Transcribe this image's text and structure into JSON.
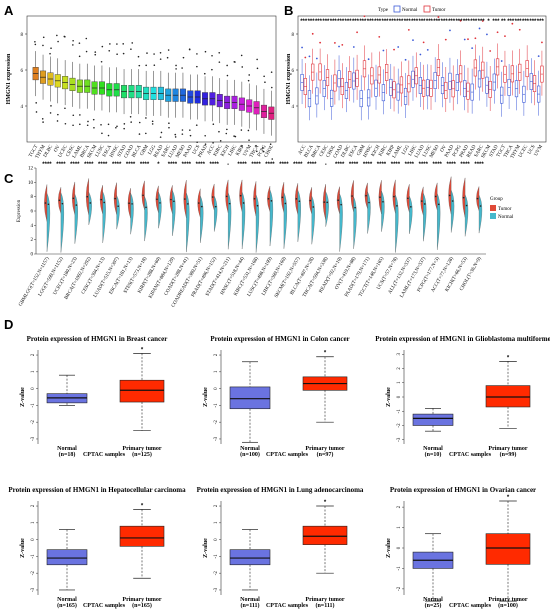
{
  "panel_letters": [
    "A",
    "B",
    "C",
    "D"
  ],
  "chart_data": [
    {
      "type": "box",
      "panel": "A",
      "ylabel": "HMGN1 expression",
      "ylim": [
        2,
        9
      ],
      "yticks": [
        4,
        6,
        8
      ],
      "categories": [
        "TGCT",
        "THYM",
        "DLBC",
        "OV",
        "UCEC",
        "CESC",
        "LAML",
        "BRCA",
        "SKCM",
        "LUSC",
        "ESCA",
        "HNSC",
        "STAD",
        "COAD",
        "BLCA",
        "GBM",
        "LGG",
        "READ",
        "SARC",
        "LUAD",
        "MESO",
        "PAAD",
        "UCS",
        "PRAD",
        "ACC",
        "KIRC",
        "KICH",
        "LIHC",
        "KIRP",
        "UVM",
        "THCA",
        "PCPG",
        "CHOL"
      ],
      "medians": [
        5.8,
        5.6,
        5.5,
        5.4,
        5.3,
        5.2,
        5.1,
        5.1,
        5.0,
        5.0,
        4.9,
        4.9,
        4.8,
        4.8,
        4.8,
        4.7,
        4.7,
        4.7,
        4.6,
        4.6,
        4.6,
        4.5,
        4.5,
        4.4,
        4.4,
        4.3,
        4.2,
        4.2,
        4.1,
        4.0,
        3.9,
        3.7,
        3.6
      ]
    },
    {
      "type": "box",
      "panel": "B",
      "ylabel": "HMGN1 expression",
      "legend_title": "Type",
      "legend": [
        "Normal",
        "Tumor"
      ],
      "yticks": [
        4,
        6,
        8
      ],
      "categories": [
        "ACC",
        "BLCA",
        "BRCA",
        "CESC",
        "CHOL",
        "COAD",
        "DLBC",
        "ESCA",
        "GBM",
        "HNSC",
        "KICH",
        "KIRC",
        "KIRP",
        "LAML",
        "LGG",
        "LIHC",
        "LUAD",
        "LUSC",
        "MESO",
        "OV",
        "PAAD",
        "PCPG",
        "PRAD",
        "READ",
        "SARC",
        "SKCM",
        "STAD",
        "TGCT",
        "THCA",
        "THYM",
        "UCEC",
        "UCS",
        "UVM"
      ],
      "significance": [
        "***",
        "***",
        "***",
        "***",
        "***",
        "***",
        "***",
        "***",
        "***",
        "***",
        "***",
        "***",
        "***",
        "***",
        "***",
        "***",
        "***",
        "***",
        "***",
        "***",
        "***",
        "***",
        "***",
        "***",
        "***",
        "*",
        "***",
        "**",
        "***",
        "***",
        "***",
        "***",
        "***"
      ]
    },
    {
      "type": "violin",
      "panel": "C",
      "ylabel": "Expression",
      "legend_title": "Group",
      "legend": [
        "Tumor",
        "Normal"
      ],
      "yticks": [
        0,
        2,
        4,
        6,
        8,
        10,
        12
      ],
      "categories": [
        "GBMLGG(T=152,N=1157)",
        "LGG(T=509,N=1152)",
        "UCEC(T=180,N=23)",
        "BRCA(T=1092,N=292)",
        "CESC(T=304,N=13)",
        "LUAD(T=515,N=397)",
        "ESCA(T=181,N=13)",
        "STES(T=573,N=18)",
        "KIRP(T=288,N=60)",
        "KIPAN(T=884,N=129)",
        "COAD(T=288,N=41)",
        "COADREAD(T=380,N=51)",
        "PRAD(T=496,N=152)",
        "STAD(T=414,N=211)",
        "HNSC(T=518,N=44)",
        "KIRC(T=531,N=168)",
        "LUSC(T=498,N=109)",
        "LIHC(T=369,N=160)",
        "SKCM(T=102,N=557)",
        "BLCA(T=407,N=28)",
        "THCA(T=504,N=338)",
        "READ(T=92,N=10)",
        "OV(T=419,N=88)",
        "PAAD(T=179,N=171)",
        "TGCT(T=148,N=165)",
        "UCS(T=57,N=78)",
        "ALL(T=132,N=337)",
        "LAML(T=173,N=337)",
        "PCPG(T=177,N=3)",
        "ACC(T=77,N=128)",
        "KICH(T=66,N=53)",
        "CHOL(T=36,N=9)"
      ],
      "significance": [
        "****",
        "****",
        "****",
        "****",
        "****",
        "****",
        "****",
        "****",
        "*",
        "****",
        "****",
        "****",
        "****",
        "-",
        "****",
        "****",
        "****",
        "****",
        "****",
        "****",
        "-",
        "****",
        "****",
        "****",
        "****",
        "****",
        "****",
        "****",
        "****",
        "****",
        "****",
        "****"
      ]
    },
    {
      "type": "box",
      "panel": "D",
      "title": "Protein expression of HMGN1 in Breast cancer",
      "ylabel": "Z-value",
      "xlabel": "CPTAC samples",
      "yticks": [
        2,
        1,
        0,
        -1,
        -2,
        -3
      ],
      "groups": [
        {
          "name": "Normal",
          "n": "(n=18)",
          "min": -1.0,
          "q1": -0.85,
          "median": -0.55,
          "q3": -0.3,
          "max": 0.8
        },
        {
          "name": "Primary tumor",
          "n": "(n=125)",
          "min": -2.5,
          "q1": -0.8,
          "median": -0.1,
          "q3": 0.5,
          "max": 2.1
        }
      ]
    },
    {
      "type": "box",
      "panel": "D",
      "title": "Protein expression of HMGN1 in Colon cancer",
      "ylabel": "Z-value",
      "xlabel": "CPTAC samples",
      "yticks": [
        2,
        1,
        0,
        -1,
        -2,
        -3
      ],
      "groups": [
        {
          "name": "Normal",
          "n": "(n=100)",
          "min": -3.2,
          "q1": -1.2,
          "median": -0.6,
          "q3": 0.1,
          "max": 1.6
        },
        {
          "name": "Primary tumor",
          "n": "(n=97)",
          "min": -2.0,
          "q1": -0.1,
          "median": 0.3,
          "q3": 0.7,
          "max": 1.9
        }
      ]
    },
    {
      "type": "box",
      "panel": "D",
      "title": "Protein expression of HMGN1 in Glioblastoma multiforme",
      "ylabel": "Z-value",
      "xlabel": "CPTAC samples",
      "yticks": [
        3,
        2,
        1,
        0,
        -1,
        -2,
        -3
      ],
      "groups": [
        {
          "name": "Normal",
          "n": "(n=10)",
          "min": -2.4,
          "q1": -2.0,
          "median": -1.5,
          "q3": -1.2,
          "max": -0.8
        },
        {
          "name": "Primary tumor",
          "n": "(n=99)",
          "min": -2.2,
          "q1": -0.7,
          "median": 0.0,
          "q3": 0.8,
          "max": 2.5
        }
      ]
    },
    {
      "type": "box",
      "panel": "D",
      "title": "Protein expression of HMGN1 in Hepatocellular carcinoma",
      "ylabel": "Z-value",
      "xlabel": "CPTAC samples",
      "yticks": [
        2,
        1,
        0,
        -1,
        -2,
        -3
      ],
      "groups": [
        {
          "name": "Normal",
          "n": "(n=165)",
          "min": -3.0,
          "q1": -1.5,
          "median": -1.1,
          "q3": -0.6,
          "max": 0.6
        },
        {
          "name": "Primary tumor",
          "n": "(n=165)",
          "min": -2.3,
          "q1": -0.4,
          "median": 0.1,
          "q3": 0.8,
          "max": 1.8
        }
      ]
    },
    {
      "type": "box",
      "panel": "D",
      "title": "Protein expression of HMGN1 in Lung adenocarcinoma",
      "ylabel": "Z-value",
      "xlabel": "CPTAC samples",
      "yticks": [
        2,
        1,
        0,
        -1,
        -2,
        -3
      ],
      "groups": [
        {
          "name": "Normal",
          "n": "(n=111)",
          "min": -3.0,
          "q1": -1.5,
          "median": -1.1,
          "q3": -0.6,
          "max": 0.6
        },
        {
          "name": "Primary tumor",
          "n": "(n=111)",
          "min": -2.0,
          "q1": -0.3,
          "median": 0.2,
          "q3": 0.8,
          "max": 2.0
        }
      ]
    },
    {
      "type": "box",
      "panel": "D",
      "title": "Protein expression of HMGN1 in Ovarian cancer",
      "ylabel": "Z-value",
      "xlabel": "CPTAC samples",
      "yticks": [
        2,
        1,
        0,
        -1,
        -2
      ],
      "groups": [
        {
          "name": "Normal",
          "n": "(n=25)",
          "min": -2.6,
          "q1": -1.0,
          "median": -0.6,
          "q3": -0.2,
          "max": 0.7
        },
        {
          "name": "Primary tumor",
          "n": "(n=100)",
          "min": -2.6,
          "q1": -0.8,
          "median": 0.0,
          "q3": 0.7,
          "max": 2.3
        }
      ]
    }
  ],
  "colors": {
    "normal_box": "#6a73e0",
    "tumor_box": "#ff2a00",
    "b_normal": "#3c5ad8",
    "b_tumor": "#e0323a",
    "c_tumor": "#e04a38",
    "c_normal": "#45b8cc"
  }
}
